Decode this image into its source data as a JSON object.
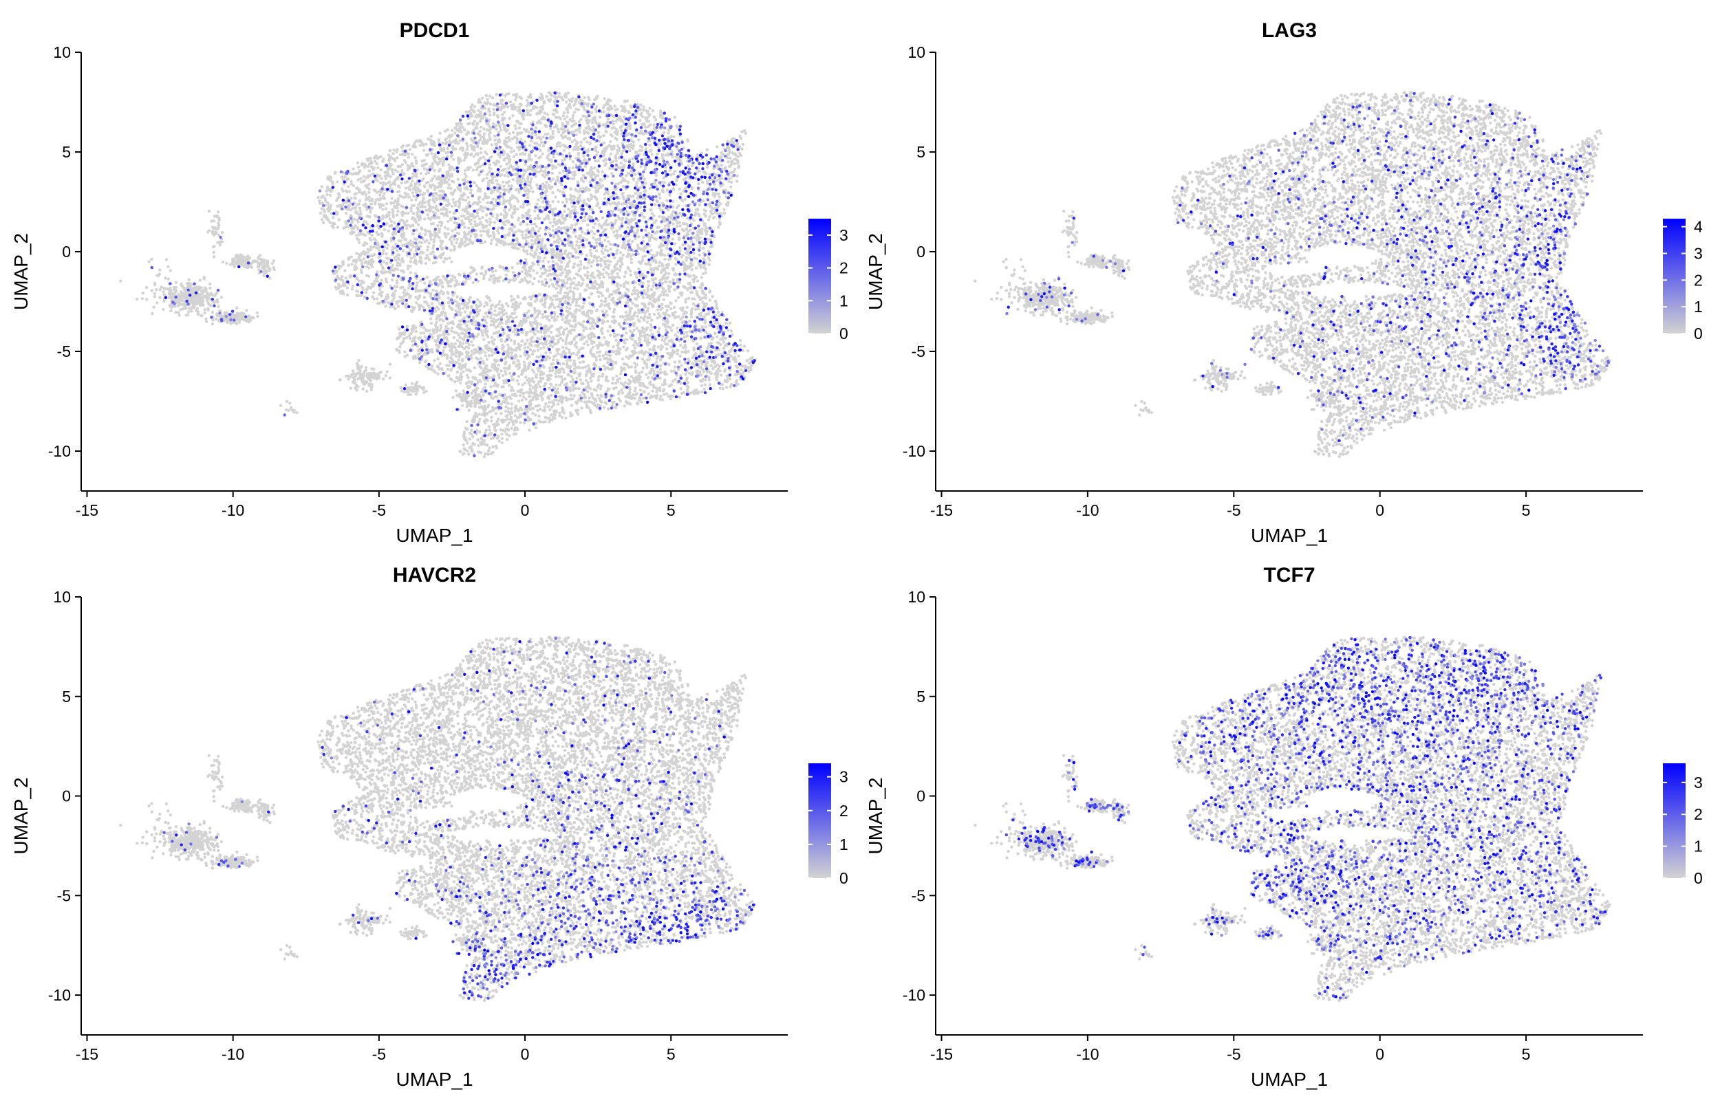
{
  "chart_data": [
    {
      "type": "scatter",
      "title": "PDCD1",
      "xlabel": "UMAP_1",
      "ylabel": "UMAP_2",
      "xlim": [
        -15.2,
        9.0
      ],
      "ylim": [
        -12.0,
        10.0
      ],
      "xticks": [
        -15,
        -10,
        -5,
        0,
        5
      ],
      "yticks": [
        -10,
        -5,
        0,
        5,
        10
      ],
      "colorbar": {
        "ticks": [
          0,
          1,
          2,
          3
        ],
        "max": 3.5,
        "low_color": "#d3d3d3",
        "high_color": "#0000ff"
      },
      "expression_regions": [
        {
          "x": 5.3,
          "y": 4.5,
          "sx": 1.2,
          "sy": 2.2,
          "w": 3.0
        },
        {
          "x": 7.0,
          "y": -4.5,
          "sx": 1.2,
          "sy": 1.8,
          "w": 2.0
        },
        {
          "x": 2.0,
          "y": 3.0,
          "sx": 3.0,
          "sy": 2.5,
          "w": 1.2
        },
        {
          "x": -3.0,
          "y": -3.0,
          "sx": 1.5,
          "sy": 1.2,
          "w": 0.8
        }
      ],
      "base_rate": 0.05
    },
    {
      "type": "scatter",
      "title": "LAG3",
      "xlabel": "UMAP_1",
      "ylabel": "UMAP_2",
      "xlim": [
        -15.2,
        9.0
      ],
      "ylim": [
        -12.0,
        10.0
      ],
      "xticks": [
        -15,
        -10,
        -5,
        0,
        5
      ],
      "yticks": [
        -10,
        -5,
        0,
        5,
        10
      ],
      "colorbar": {
        "ticks": [
          0,
          1,
          2,
          3,
          4
        ],
        "max": 4.3,
        "low_color": "#d3d3d3",
        "high_color": "#0000ff"
      },
      "expression_regions": [
        {
          "x": 6.5,
          "y": 1.0,
          "sx": 1.0,
          "sy": 3.0,
          "w": 1.5
        },
        {
          "x": 6.5,
          "y": -4.5,
          "sx": 1.5,
          "sy": 1.8,
          "w": 1.8
        },
        {
          "x": 2.0,
          "y": 0.0,
          "sx": 3.5,
          "sy": 4.0,
          "w": 0.8
        }
      ],
      "base_rate": 0.04
    },
    {
      "type": "scatter",
      "title": "HAVCR2",
      "xlabel": "UMAP_1",
      "ylabel": "UMAP_2",
      "xlim": [
        -15.2,
        9.0
      ],
      "ylim": [
        -12.0,
        10.0
      ],
      "xticks": [
        -15,
        -10,
        -5,
        0,
        5
      ],
      "yticks": [
        -10,
        -5,
        0,
        5,
        10
      ],
      "colorbar": {
        "ticks": [
          0,
          1,
          2,
          3
        ],
        "max": 3.4,
        "low_color": "#d3d3d3",
        "high_color": "#0000ff"
      },
      "expression_regions": [
        {
          "x": -1.0,
          "y": -9.0,
          "sx": 1.2,
          "sy": 1.0,
          "w": 4.0
        },
        {
          "x": 3.0,
          "y": -6.0,
          "sx": 2.5,
          "sy": 1.5,
          "w": 2.5
        },
        {
          "x": 6.5,
          "y": -6.5,
          "sx": 1.2,
          "sy": 0.8,
          "w": 2.0
        },
        {
          "x": 3.0,
          "y": -1.0,
          "sx": 2.0,
          "sy": 2.0,
          "w": 1.0
        }
      ],
      "base_rate": 0.03
    },
    {
      "type": "scatter",
      "title": "TCF7",
      "xlabel": "UMAP_1",
      "ylabel": "UMAP_2",
      "xlim": [
        -15.2,
        9.0
      ],
      "ylim": [
        -12.0,
        10.0
      ],
      "xticks": [
        -15,
        -10,
        -5,
        0,
        5
      ],
      "yticks": [
        -10,
        -5,
        0,
        5,
        10
      ],
      "colorbar": {
        "ticks": [
          0,
          1,
          2,
          3
        ],
        "max": 3.6,
        "low_color": "#d3d3d3",
        "high_color": "#0000ff"
      },
      "expression_regions": [
        {
          "x": 0.5,
          "y": 5.5,
          "sx": 4.5,
          "sy": 2.0,
          "w": 2.0
        },
        {
          "x": 4.5,
          "y": 6.5,
          "sx": 1.0,
          "sy": 1.0,
          "w": 1.5
        },
        {
          "x": -3.5,
          "y": -4.5,
          "sx": 1.5,
          "sy": 0.8,
          "w": 2.0
        },
        {
          "x": 0.0,
          "y": -2.0,
          "sx": 5.0,
          "sy": 4.0,
          "w": 0.8
        }
      ],
      "base_rate": 0.12
    }
  ]
}
